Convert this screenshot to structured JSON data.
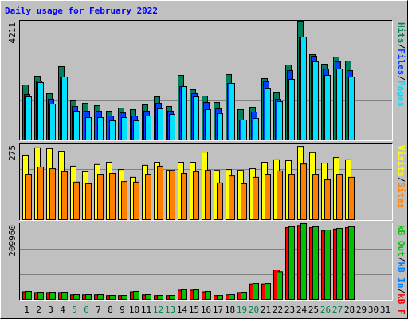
{
  "chart_data": [
    {
      "type": "bar",
      "title": "Daily usage for February 2022",
      "ylim": [
        0,
        4211
      ],
      "yticks": [
        4211
      ],
      "series": [
        {
          "name": "Hits",
          "color": "#00805c",
          "values": [
            1965,
            2274,
            1656,
            2611,
            1404,
            1319,
            1235,
            1039,
            1151,
            1095,
            1263,
            1544,
            1207,
            2302,
            1797,
            1572,
            1348,
            2330,
            1095,
            1179,
            2190,
            1712,
            2667,
            4211,
            3032,
            2695,
            2948,
            2807,
            null,
            null,
            null
          ]
        },
        {
          "name": "Files",
          "color": "#0040ff",
          "values": [
            1628,
            2105,
            1460,
            2246,
            1207,
            1039,
            1039,
            870,
            982,
            870,
            1039,
            1319,
            1039,
            1909,
            1656,
            1347,
            1123,
            2021,
            730,
            1011,
            2077,
            1460,
            2470,
            3649,
            2976,
            2526,
            2779,
            2470,
            null,
            null,
            null
          ]
        },
        {
          "name": "Pages",
          "color": "#00e0ff",
          "values": [
            1544,
            2049,
            1291,
            2246,
            1039,
            814,
            814,
            702,
            814,
            702,
            870,
            1123,
            926,
            1909,
            1544,
            1095,
            954,
            2021,
            730,
            786,
            1853,
            1375,
            2161,
            3649,
            2779,
            2302,
            2526,
            2246,
            null,
            null,
            null
          ]
        }
      ],
      "separator": "/"
    },
    {
      "type": "bar",
      "ylim": [
        0,
        275
      ],
      "yticks": [
        275
      ],
      "series": [
        {
          "name": "Visits",
          "color": "#ffff00",
          "values": [
            235,
            261,
            258,
            249,
            195,
            175,
            201,
            209,
            183,
            155,
            198,
            209,
            180,
            209,
            209,
            246,
            180,
            183,
            180,
            186,
            209,
            218,
            215,
            266,
            244,
            206,
            226,
            218,
            null,
            null,
            null
          ]
        },
        {
          "name": "Sites",
          "color": "#ff8000",
          "values": [
            166,
            192,
            186,
            175,
            138,
            132,
            166,
            169,
            140,
            138,
            166,
            195,
            180,
            169,
            175,
            180,
            135,
            160,
            132,
            155,
            166,
            178,
            166,
            203,
            166,
            146,
            166,
            155,
            null,
            null,
            null
          ]
        }
      ],
      "separator": "/"
    },
    {
      "type": "bar",
      "ylim": [
        0,
        209960
      ],
      "yticks": [
        209960
      ],
      "legend_reversed": true,
      "series": [
        {
          "name": "kB F",
          "color": "#ff0000",
          "values": [
            23000,
            21000,
            21000,
            21000,
            14800,
            14800,
            14800,
            12700,
            12700,
            23000,
            14800,
            12700,
            12700,
            27500,
            27500,
            23000,
            12700,
            14800,
            21000,
            44500,
            44500,
            83106,
            199000,
            205000,
            199000,
            190000,
            195000,
            199000,
            null,
            null,
            null
          ]
        },
        {
          "name": "kB In",
          "color": "#0080ff",
          "values": [
            0,
            0,
            0,
            0,
            0,
            0,
            0,
            0,
            0,
            0,
            0,
            0,
            0,
            0,
            0,
            0,
            0,
            0,
            0,
            0,
            0,
            0,
            0,
            0,
            0,
            0,
            0,
            0,
            null,
            null,
            null
          ]
        },
        {
          "name": "kB Out",
          "color": "#00c000",
          "values": [
            24057,
            21870,
            21870,
            21870,
            15309,
            15309,
            15309,
            13122,
            13122,
            24057,
            15309,
            13122,
            13122,
            28431,
            28431,
            24057,
            13122,
            15309,
            21870,
            45927,
            45927,
            78000,
            201204,
            209960,
            201204,
            192456,
            196830,
            201204,
            null,
            null,
            null
          ]
        }
      ],
      "separator": "/",
      "categories": [
        "1",
        "2",
        "3",
        "4",
        "5",
        "6",
        "7",
        "8",
        "9",
        "10",
        "11",
        "12",
        "13",
        "14",
        "15",
        "16",
        "17",
        "18",
        "19",
        "20",
        "21",
        "22",
        "23",
        "24",
        "25",
        "26",
        "27",
        "28",
        "29",
        "30",
        "31"
      ],
      "category_colors": [
        "#000000",
        "#000000",
        "#000000",
        "#000000",
        "#008040",
        "#008040",
        "#000000",
        "#000000",
        "#000000",
        "#000000",
        "#000000",
        "#008040",
        "#008040",
        "#000000",
        "#000000",
        "#000000",
        "#000000",
        "#000000",
        "#008040",
        "#008040",
        "#000000",
        "#000000",
        "#000000",
        "#000000",
        "#000000",
        "#008040",
        "#008040",
        "#000000",
        "#000000",
        "#000000",
        "#000000"
      ]
    }
  ]
}
